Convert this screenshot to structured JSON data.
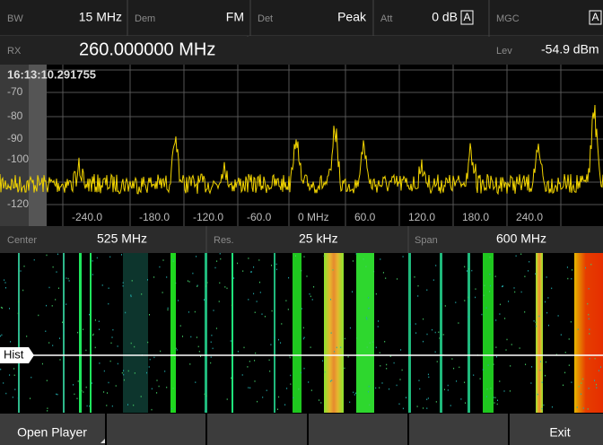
{
  "header": {
    "bw_label": "BW",
    "bw": "15 MHz",
    "dem_label": "Dem",
    "dem": "FM",
    "det_label": "Det",
    "det": "Peak",
    "att_label": "Att",
    "att": "0 dB",
    "att_flag": "A",
    "mgc_label": "MGC",
    "mgc_flag": "A",
    "rx_label": "RX",
    "rx": "260.000000 MHz",
    "lev_label": "Lev",
    "lev": "-54.9 dBm"
  },
  "spectrum": {
    "timestamp": "16:13:10.291755",
    "y_labels": [
      "-70",
      "-80",
      "-90",
      "-100",
      "-120"
    ],
    "x_labels": [
      "-240.0",
      "-180.0",
      "-120.0",
      "-60.0",
      "0 MHz",
      "60.0",
      "120.0",
      "180.0",
      "240.0"
    ]
  },
  "settings": {
    "center_label": "Center",
    "center": "525 MHz",
    "res_label": "Res.",
    "res": "25 kHz",
    "span_label": "Span",
    "span": "600 MHz"
  },
  "waterfall": {
    "marker": "Hist"
  },
  "softkeys": {
    "left": "Open Player",
    "right": "Exit"
  }
}
